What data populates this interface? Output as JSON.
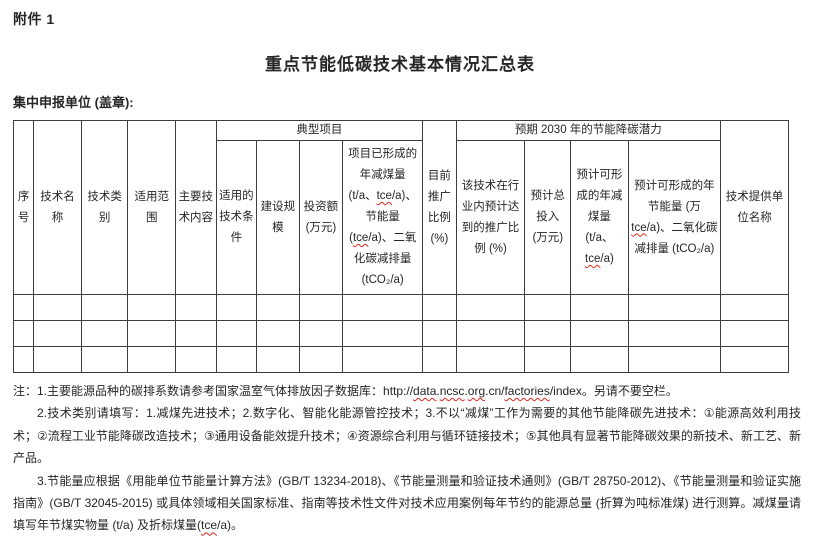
{
  "page": {
    "attachment_label": "附件 1",
    "title": "重点节能低碳技术基本情况汇总表",
    "unit_label": "集中申报单位 (盖章):"
  },
  "table": {
    "bands": {
      "typical_project": "典型项目",
      "potential_2030": "预期 2030 年的节能降碳潜力"
    },
    "headers": {
      "index": "序号",
      "tech_name": "技术名称",
      "tech_category": "技术类别",
      "scope": "适用范围",
      "main_content": "主要技术内容",
      "conditions": "适用的技术条件",
      "scale": "建设规模",
      "investment": "投资额 (万元)",
      "project_reduction": "项目已形成的年减煤量 (t/a、tce/a)、节能量(tce/a)、二氧化碳减排量 (tCO₂/a)",
      "current_ratio": "目前推广比例 (%)",
      "expected_ratio": "该技术在行业内预计达到的推广比例 (%)",
      "expected_investment": "预计总投入 (万元)",
      "expected_coal_reduction": "预计可形成的年减煤量 (t/a、tce/a)",
      "expected_saving": "预计可形成的年节能量 (万 tce/a)、二氧化碳减排量 (tCO₂/a)",
      "provider": "技术提供单位名称"
    },
    "empty_row_count": 3,
    "column_count": 15
  },
  "notes": {
    "note1_prefix": "注：1.主要能源品种的碳排系数请参考国家温室气体排放因子数据库：",
    "note1_url": "http://data.ncsc.org.cn/factories/index",
    "note1_suffix": "。另请不要空栏。",
    "note2": "2.技术类别请填写：1.减煤先进技术；2.数字化、智能化能源管控技术；3.不以“减煤”工作为需要的其他节能降碳先进技术：①能源高效利用技术；②流程工业节能降碳改造技术；③通用设备能效提升技术；④资源综合利用与循环链接技术；⑤其他具有显著节能降碳效果的新技术、新工艺、新产品。",
    "note3": "3.节能量应根据《用能单位节能量计算方法》(GB/T 13234-2018)、《节能量测量和验证技术通则》(GB/T 28750-2012)、《节能量测量和验证实施指南》(GB/T 32045-2015) 或具体领域相关国家标准、指南等技术性文件对技术应用案例每年节约的能源总量 (折算为吨标准煤) 进行测算。减煤量请填写年节煤实物量 (t/a) 及折标煤量(tce/a)。"
  },
  "spellcheck": {
    "tokens": [
      "tce",
      "data",
      "ncsc",
      "org",
      "factories"
    ]
  },
  "colors": {
    "text": "#262626",
    "border": "#3d3d3d",
    "squiggle": "#e0281e",
    "page_bg": "#ffffff"
  }
}
